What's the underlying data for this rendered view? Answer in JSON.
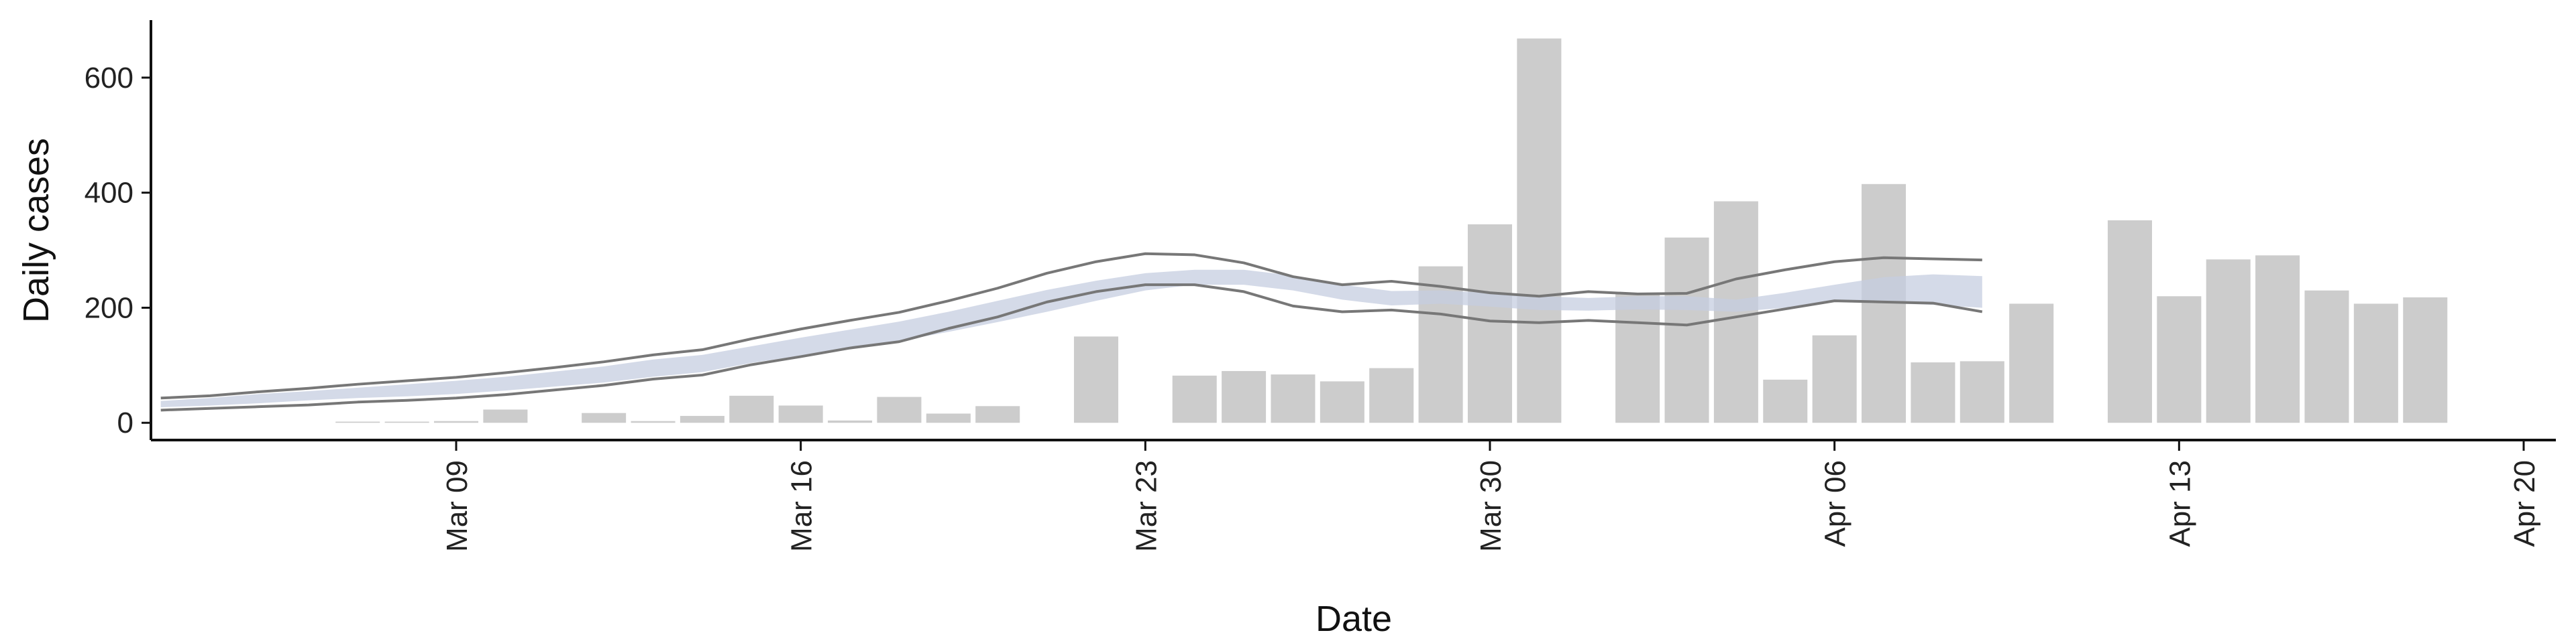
{
  "chart_data": {
    "type": "bar",
    "title": "",
    "xlabel": "Date",
    "ylabel": "Daily cases",
    "ylim": [
      -30,
      700
    ],
    "y_ticks": [
      0,
      200,
      400,
      600
    ],
    "x_tick_labels": [
      "Mar 09",
      "Mar 16",
      "Mar 23",
      "Mar 30",
      "Apr 06",
      "Apr 13",
      "Apr 20"
    ],
    "x_tick_dates": [
      "2020-03-09",
      "2020-03-16",
      "2020-03-23",
      "2020-03-30",
      "2020-04-06",
      "2020-04-13",
      "2020-04-20"
    ],
    "x_range": [
      "2020-03-02",
      "2020-04-20"
    ],
    "grid": false,
    "bars": {
      "color": "#cccccc",
      "dates": [
        "2020-03-07",
        "2020-03-08",
        "2020-03-09",
        "2020-03-10",
        "2020-03-12",
        "2020-03-13",
        "2020-03-14",
        "2020-03-15",
        "2020-03-16",
        "2020-03-17",
        "2020-03-18",
        "2020-03-19",
        "2020-03-20",
        "2020-03-22",
        "2020-03-24",
        "2020-03-25",
        "2020-03-26",
        "2020-03-27",
        "2020-03-28",
        "2020-03-29",
        "2020-03-30",
        "2020-03-31",
        "2020-04-02",
        "2020-04-03",
        "2020-04-04",
        "2020-04-05",
        "2020-04-06",
        "2020-04-07",
        "2020-04-08",
        "2020-04-09",
        "2020-04-10",
        "2020-04-12",
        "2020-04-13",
        "2020-04-14",
        "2020-04-15",
        "2020-04-16",
        "2020-04-17",
        "2020-04-18"
      ],
      "values": [
        2,
        2,
        3,
        23,
        17,
        3,
        12,
        47,
        30,
        4,
        45,
        16,
        29,
        150,
        82,
        90,
        84,
        72,
        95,
        272,
        345,
        668,
        225,
        322,
        385,
        75,
        152,
        415,
        105,
        107,
        207,
        352,
        220,
        284,
        291,
        230,
        207,
        218
      ]
    },
    "series": [
      {
        "kind": "band",
        "color": "#c5cde0",
        "dates": [
          "2020-03-03",
          "2020-03-04",
          "2020-03-05",
          "2020-03-06",
          "2020-03-07",
          "2020-03-08",
          "2020-03-09",
          "2020-03-10",
          "2020-03-11",
          "2020-03-12",
          "2020-03-13",
          "2020-03-14",
          "2020-03-15",
          "2020-03-16",
          "2020-03-17",
          "2020-03-18",
          "2020-03-19",
          "2020-03-20",
          "2020-03-21",
          "2020-03-22",
          "2020-03-23",
          "2020-03-24",
          "2020-03-25",
          "2020-03-26",
          "2020-03-27",
          "2020-03-28",
          "2020-03-29",
          "2020-03-30",
          "2020-03-31",
          "2020-04-01",
          "2020-04-02",
          "2020-04-03",
          "2020-04-04",
          "2020-04-05",
          "2020-04-06",
          "2020-04-07",
          "2020-04-08",
          "2020-04-09"
        ],
        "lower": [
          27,
          30,
          34,
          39,
          43,
          46,
          50,
          56,
          63,
          70,
          80,
          88,
          104,
          117,
          130,
          142,
          158,
          175,
          193,
          212,
          230,
          240,
          240,
          230,
          214,
          204,
          207,
          202,
          196,
          195,
          197,
          196,
          193,
          200,
          210,
          208,
          205,
          200
        ],
        "upper": [
          38,
          43,
          50,
          55,
          61,
          67,
          73,
          80,
          89,
          98,
          110,
          118,
          133,
          148,
          162,
          176,
          193,
          212,
          231,
          247,
          260,
          266,
          266,
          256,
          240,
          229,
          230,
          226,
          220,
          217,
          220,
          220,
          214,
          226,
          240,
          253,
          258,
          255
        ]
      },
      {
        "kind": "line",
        "color": "#777777",
        "dates": [
          "2020-03-03",
          "2020-03-04",
          "2020-03-05",
          "2020-03-06",
          "2020-03-07",
          "2020-03-08",
          "2020-03-09",
          "2020-03-10",
          "2020-03-11",
          "2020-03-12",
          "2020-03-13",
          "2020-03-14",
          "2020-03-15",
          "2020-03-16",
          "2020-03-17",
          "2020-03-18",
          "2020-03-19",
          "2020-03-20",
          "2020-03-21",
          "2020-03-22",
          "2020-03-23",
          "2020-03-24",
          "2020-03-25",
          "2020-03-26",
          "2020-03-27",
          "2020-03-28",
          "2020-03-29",
          "2020-03-30",
          "2020-03-31",
          "2020-04-01",
          "2020-04-02",
          "2020-04-03",
          "2020-04-04",
          "2020-04-05",
          "2020-04-06",
          "2020-04-07",
          "2020-04-08",
          "2020-04-09"
        ],
        "values": [
          43,
          47,
          54,
          60,
          67,
          73,
          79,
          87,
          96,
          106,
          118,
          127,
          146,
          163,
          178,
          192,
          212,
          234,
          260,
          280,
          294,
          292,
          278,
          254,
          240,
          246,
          237,
          226,
          220,
          228,
          224,
          225,
          250,
          266,
          280,
          287,
          285,
          283
        ]
      },
      {
        "kind": "line",
        "color": "#777777",
        "dates": [
          "2020-03-03",
          "2020-03-04",
          "2020-03-05",
          "2020-03-06",
          "2020-03-07",
          "2020-03-08",
          "2020-03-09",
          "2020-03-10",
          "2020-03-11",
          "2020-03-12",
          "2020-03-13",
          "2020-03-14",
          "2020-03-15",
          "2020-03-16",
          "2020-03-17",
          "2020-03-18",
          "2020-03-19",
          "2020-03-20",
          "2020-03-21",
          "2020-03-22",
          "2020-03-23",
          "2020-03-24",
          "2020-03-25",
          "2020-03-26",
          "2020-03-27",
          "2020-03-28",
          "2020-03-29",
          "2020-03-30",
          "2020-03-31",
          "2020-04-01",
          "2020-04-02",
          "2020-04-03",
          "2020-04-04",
          "2020-04-05",
          "2020-04-06",
          "2020-04-07",
          "2020-04-08",
          "2020-04-09"
        ],
        "values": [
          22,
          25,
          28,
          31,
          36,
          39,
          43,
          49,
          57,
          65,
          76,
          83,
          101,
          115,
          130,
          141,
          164,
          184,
          210,
          228,
          240,
          240,
          228,
          203,
          193,
          196,
          189,
          177,
          174,
          178,
          174,
          170,
          184,
          198,
          212,
          210,
          208,
          193
        ]
      }
    ]
  }
}
